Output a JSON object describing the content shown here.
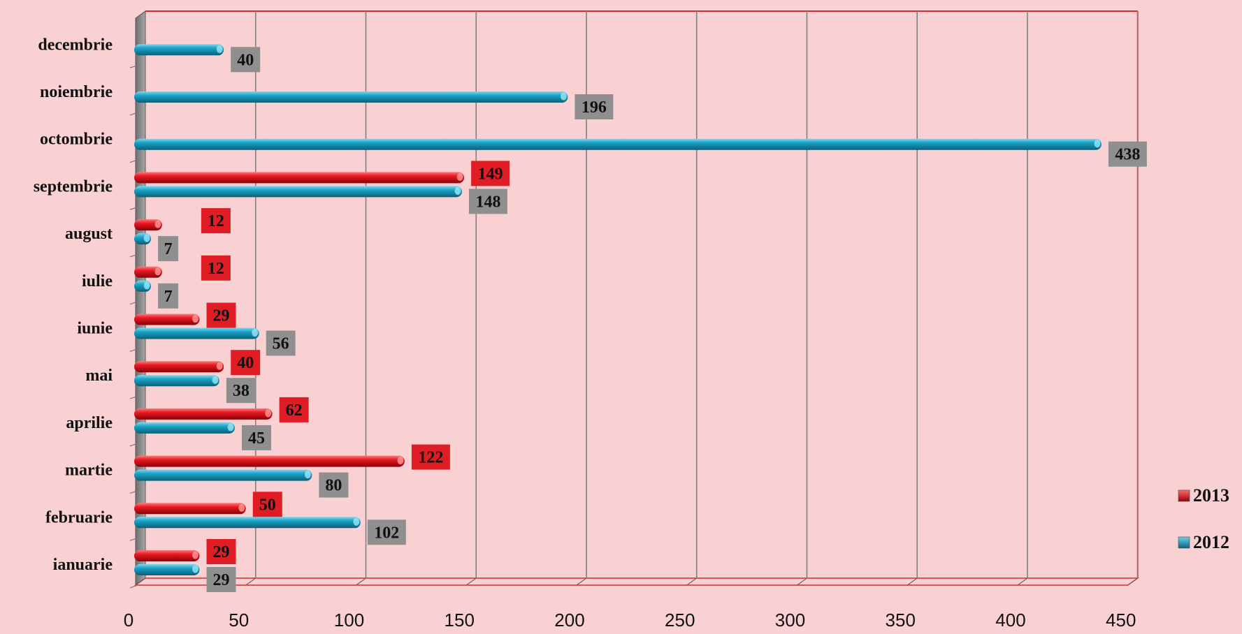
{
  "chart_data": {
    "type": "bar",
    "orientation": "horizontal",
    "title": "",
    "xlabel": "",
    "ylabel": "",
    "xlim": [
      0,
      450
    ],
    "x_ticks": [
      0,
      50,
      100,
      150,
      200,
      250,
      300,
      350,
      400,
      450
    ],
    "grid": true,
    "legend_position": "bottom-right",
    "categories": [
      "ianuarie",
      "februarie",
      "martie",
      "aprilie",
      "mai ",
      "iunie",
      "iulie",
      "august",
      "septembrie",
      "octombrie",
      "noiembrie",
      "decembrie"
    ],
    "series": [
      {
        "name": "2013",
        "color": "#e01c24",
        "label_bg": "#e01c24",
        "values": [
          29,
          50,
          122,
          62,
          40,
          29,
          12,
          12,
          149,
          null,
          null,
          null
        ]
      },
      {
        "name": "2012",
        "color": "#149bbd",
        "label_bg": "#8f8f8f",
        "values": [
          29,
          102,
          80,
          45,
          38,
          56,
          7,
          7,
          148,
          438,
          196,
          40
        ]
      }
    ]
  }
}
